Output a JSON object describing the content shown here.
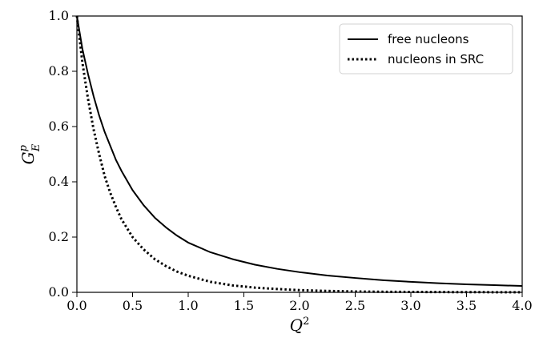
{
  "chart_data": {
    "type": "line",
    "xlabel": "Q",
    "xlabel_sup": "2",
    "ylabel": "G",
    "ylabel_sup": "p",
    "ylabel_sub": "E",
    "xlim": [
      0.0,
      4.0
    ],
    "ylim": [
      0.0,
      1.0
    ],
    "xticks": [
      "0.0",
      "0.5",
      "1.0",
      "1.5",
      "2.0",
      "2.5",
      "3.0",
      "3.5",
      "4.0"
    ],
    "yticks": [
      "0.0",
      "0.2",
      "0.4",
      "0.6",
      "0.8",
      "1.0"
    ],
    "grid": false,
    "legend_position": "top-right",
    "series": [
      {
        "name": "free nucleons",
        "style": "solid",
        "color": "#000000",
        "x": [
          0.0,
          0.05,
          0.1,
          0.15,
          0.2,
          0.25,
          0.3,
          0.35,
          0.4,
          0.5,
          0.6,
          0.7,
          0.8,
          0.9,
          1.0,
          1.2,
          1.4,
          1.6,
          1.8,
          2.0,
          2.25,
          2.5,
          2.75,
          3.0,
          3.25,
          3.5,
          3.75,
          4.0
        ],
        "y": [
          1.0,
          0.88,
          0.79,
          0.71,
          0.64,
          0.58,
          0.53,
          0.48,
          0.44,
          0.37,
          0.315,
          0.27,
          0.235,
          0.205,
          0.18,
          0.145,
          0.12,
          0.1,
          0.085,
          0.073,
          0.061,
          0.052,
          0.044,
          0.038,
          0.033,
          0.029,
          0.026,
          0.023
        ]
      },
      {
        "name": "nucleons in SRC",
        "style": "dotted",
        "color": "#000000",
        "x": [
          0.0,
          0.05,
          0.1,
          0.15,
          0.2,
          0.25,
          0.3,
          0.35,
          0.4,
          0.5,
          0.6,
          0.7,
          0.8,
          0.9,
          1.0,
          1.2,
          1.4,
          1.6,
          1.8,
          2.0,
          2.25,
          2.5,
          2.75,
          3.0,
          3.25,
          3.5,
          3.75,
          4.0
        ],
        "y": [
          1.0,
          0.83,
          0.7,
          0.59,
          0.5,
          0.42,
          0.36,
          0.31,
          0.265,
          0.2,
          0.155,
          0.12,
          0.095,
          0.075,
          0.06,
          0.038,
          0.025,
          0.017,
          0.012,
          0.008,
          0.005,
          0.003,
          0.002,
          0.0015,
          0.001,
          0.0007,
          0.0005,
          0.0003
        ]
      }
    ]
  }
}
